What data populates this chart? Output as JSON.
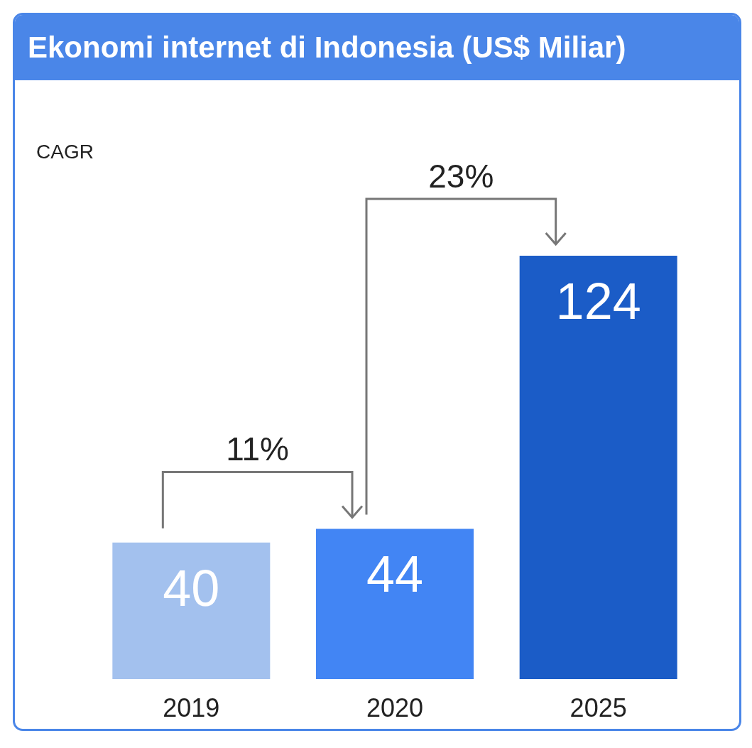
{
  "chart_data": {
    "type": "bar",
    "title": "Ekonomi internet di Indonesia (US$ Miliar)",
    "categories": [
      "2019",
      "2020",
      "2025"
    ],
    "values": [
      40,
      44,
      124
    ],
    "colors": [
      "#a3c1ee",
      "#4285f4",
      "#1b5cc7"
    ],
    "data_labels": true,
    "annotations": [
      "CAGR",
      "11%",
      "23%"
    ]
  }
}
